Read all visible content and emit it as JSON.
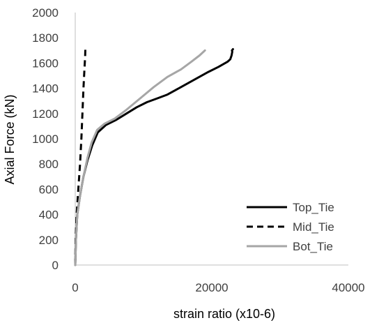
{
  "chart_data": {
    "type": "line",
    "title": "",
    "xlabel": "strain ratio (x10-6)",
    "ylabel": "Axial Force (kN)",
    "xlim": [
      0,
      40000
    ],
    "ylim": [
      0,
      2000
    ],
    "xticks": [
      0,
      20000,
      40000
    ],
    "yticks": [
      0,
      200,
      400,
      600,
      800,
      1000,
      1200,
      1400,
      1600,
      1800,
      2000
    ],
    "grid": false,
    "legend_position": "bottom-right",
    "series": [
      {
        "name": "Top_Tie",
        "color": "#000000",
        "dash": "solid",
        "x": [
          0,
          100,
          300,
          700,
          1200,
          1800,
          2500,
          3300,
          4500,
          6000,
          7500,
          9000,
          10500,
          12000,
          13500,
          15500,
          17500,
          19500,
          21000,
          22300,
          22700,
          22900,
          23000,
          22950,
          23100
        ],
        "y": [
          0,
          200,
          400,
          550,
          700,
          830,
          950,
          1050,
          1110,
          1150,
          1200,
          1250,
          1290,
          1320,
          1350,
          1410,
          1470,
          1530,
          1570,
          1610,
          1630,
          1660,
          1690,
          1700,
          1710
        ]
      },
      {
        "name": "Mid_Tie",
        "color": "#000000",
        "dash": "dashed",
        "x": [
          0,
          50,
          200,
          450,
          700,
          900,
          1050,
          1200,
          1350,
          1450,
          1480
        ],
        "y": [
          0,
          200,
          400,
          600,
          800,
          1000,
          1200,
          1400,
          1550,
          1650,
          1710
        ]
      },
      {
        "name": "Bot_Tie",
        "color": "#a6a6a6",
        "dash": "solid",
        "x": [
          0,
          100,
          300,
          700,
          1200,
          1800,
          2400,
          3200,
          4300,
          5800,
          7500,
          9500,
          11500,
          13500,
          15500,
          17000,
          18200,
          18800,
          19000
        ],
        "y": [
          0,
          200,
          400,
          550,
          700,
          850,
          970,
          1070,
          1120,
          1160,
          1230,
          1320,
          1410,
          1490,
          1550,
          1610,
          1660,
          1690,
          1700
        ]
      }
    ]
  }
}
